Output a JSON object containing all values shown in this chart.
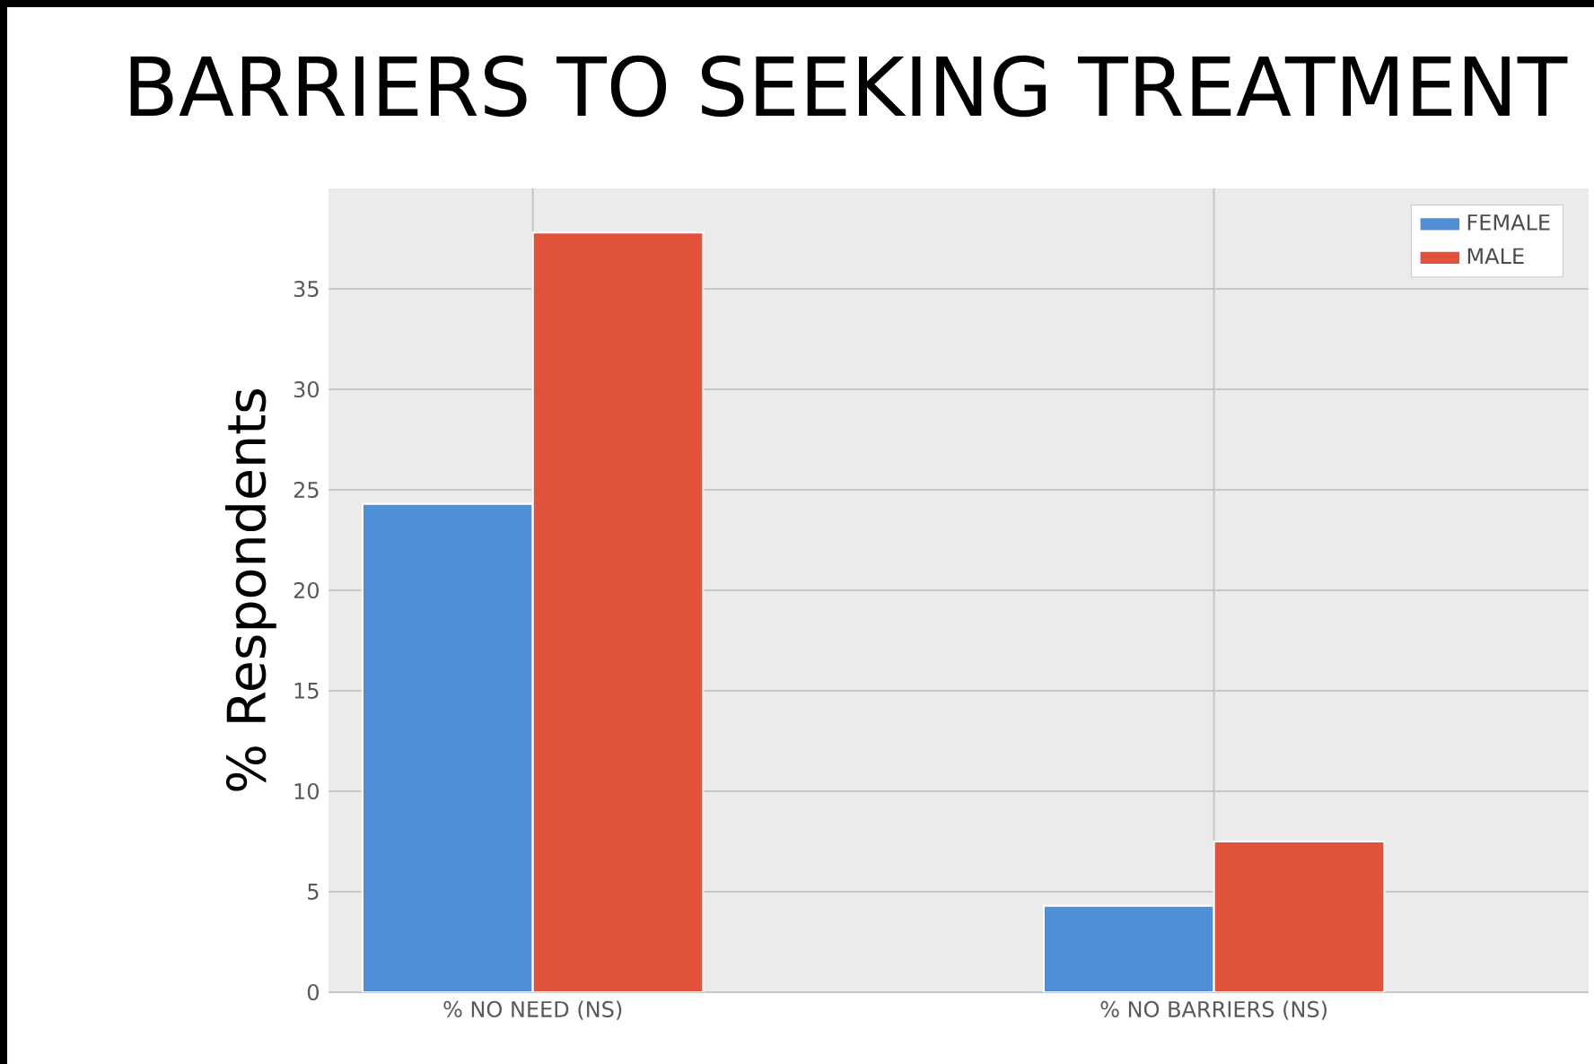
{
  "chart_data": {
    "type": "bar",
    "title": "BARRIERS TO SEEKING TREATMENT",
    "ylabel": "% Respondents",
    "categories": [
      "% NO NEED (NS)",
      "% NO BARRIERS (NS)"
    ],
    "series": [
      {
        "name": "FEMALE",
        "color": "#4f8fd6",
        "values": [
          24.3,
          4.3
        ]
      },
      {
        "name": "MALE",
        "color": "#e0533a",
        "values": [
          37.8,
          7.5
        ]
      }
    ],
    "ylim": [
      0,
      40
    ],
    "yticks": [
      0,
      5,
      10,
      15,
      20,
      25,
      30,
      35
    ],
    "grid": true,
    "legend": "top right"
  }
}
